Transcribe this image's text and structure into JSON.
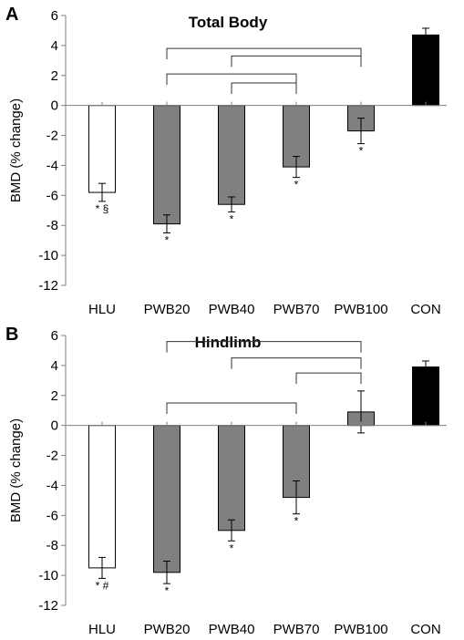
{
  "chart_data": [
    {
      "type": "bar",
      "panel_label": "A",
      "title": "Total Body",
      "ylabel": "BMD (% change)",
      "xlabel": "",
      "ylim": [
        -12,
        6
      ],
      "yticks": [
        6,
        4,
        2,
        0,
        -2,
        -4,
        -6,
        -8,
        -10,
        -12
      ],
      "categories": [
        "HLU",
        "PWB20",
        "PWB40",
        "PWB70",
        "PWB100",
        "CON"
      ],
      "values": [
        -5.8,
        -7.9,
        -6.6,
        -4.1,
        -1.7,
        4.7
      ],
      "errors": [
        0.6,
        0.6,
        0.5,
        0.7,
        0.85,
        0.45
      ],
      "bar_colors": [
        "#ffffff",
        "#808080",
        "#808080",
        "#808080",
        "#808080",
        "#000000"
      ],
      "annotations": [
        "* §",
        "*",
        "*",
        "*",
        "*",
        ""
      ],
      "brackets": [
        {
          "from": "PWB20",
          "to": "PWB100",
          "level": 3.8
        },
        {
          "from": "PWB40",
          "to": "PWB100",
          "level": 3.3
        },
        {
          "from": "PWB20",
          "to": "PWB70",
          "level": 2.1
        },
        {
          "from": "PWB40",
          "to": "PWB70",
          "level": 1.5
        }
      ]
    },
    {
      "type": "bar",
      "panel_label": "B",
      "title": "Hindlimb",
      "ylabel": "BMD (% change)",
      "xlabel": "",
      "ylim": [
        -12,
        6
      ],
      "yticks": [
        6,
        4,
        2,
        0,
        -2,
        -4,
        -6,
        -8,
        -10,
        -12
      ],
      "categories": [
        "HLU",
        "PWB20",
        "PWB40",
        "PWB70",
        "PWB100",
        "CON"
      ],
      "values": [
        -9.5,
        -9.8,
        -7.0,
        -4.8,
        0.9,
        3.9
      ],
      "errors": [
        0.7,
        0.75,
        0.7,
        1.1,
        1.4,
        0.4
      ],
      "bar_colors": [
        "#ffffff",
        "#808080",
        "#808080",
        "#808080",
        "#808080",
        "#000000"
      ],
      "annotations": [
        "* #",
        "*",
        "*",
        "*",
        "",
        ""
      ],
      "brackets": [
        {
          "from": "PWB20",
          "to": "PWB100",
          "level": 5.6
        },
        {
          "from": "PWB40",
          "to": "PWB100",
          "level": 4.5
        },
        {
          "from": "PWB70",
          "to": "PWB100",
          "level": 3.5
        },
        {
          "from": "PWB20",
          "to": "PWB70",
          "level": 1.5
        }
      ]
    }
  ]
}
